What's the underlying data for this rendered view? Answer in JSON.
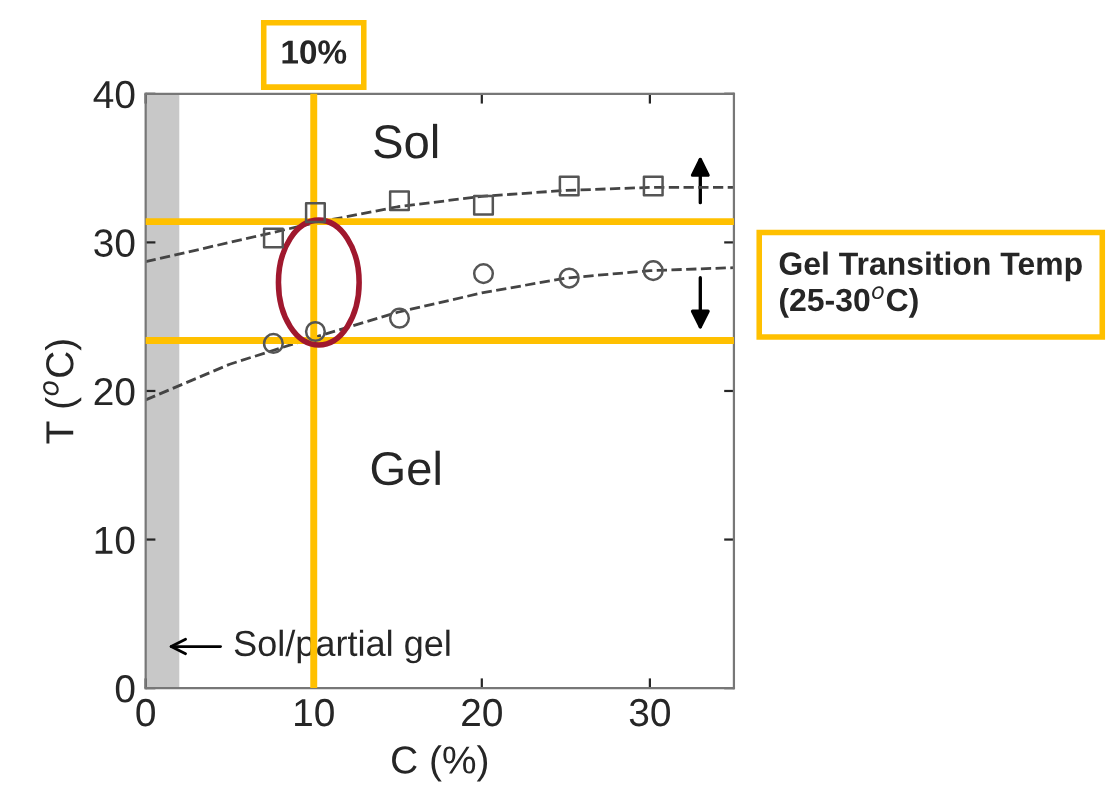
{
  "chart_data": {
    "type": "scatter",
    "xlabel": "C (%)",
    "ylabel": "T ($^{o}$C)",
    "xlim": [
      0,
      35
    ],
    "ylim": [
      0,
      40
    ],
    "xticks": [
      0,
      10,
      20,
      30
    ],
    "yticks": [
      0,
      10,
      20,
      30,
      40
    ],
    "grid": false,
    "legend": false,
    "series": [
      {
        "marker": "square",
        "color": "#555555",
        "x": [
          7.6,
          10.1,
          15.1,
          20.1,
          25.2,
          30.2
        ],
        "values": [
          30.3,
          32.0,
          32.8,
          32.5,
          33.8,
          33.8
        ]
      },
      {
        "marker": "circle",
        "color": "#555555",
        "x": [
          7.6,
          10.1,
          15.1,
          20.1,
          25.2,
          30.2
        ],
        "values": [
          23.2,
          24.0,
          24.9,
          27.9,
          27.6,
          28.1
        ]
      },
      {
        "type": "line",
        "line_style": "dashed",
        "marker": "none",
        "color": "#444444",
        "x": [
          0,
          5,
          10,
          15,
          20,
          25,
          30,
          35
        ],
        "values": [
          28.7,
          30.0,
          31.3,
          32.4,
          33.1,
          33.5,
          33.7,
          33.7
        ]
      },
      {
        "type": "line",
        "line_style": "dashed",
        "marker": "none",
        "color": "#444444",
        "x": [
          0,
          5,
          10,
          15,
          20,
          25,
          30,
          35
        ],
        "values": [
          19.4,
          21.8,
          23.6,
          25.3,
          26.6,
          27.6,
          28.1,
          28.3
        ]
      }
    ],
    "ref_lines": [
      {
        "axis": "y",
        "value": 31.4,
        "color": "#ffc000"
      },
      {
        "axis": "y",
        "value": 23.4,
        "color": "#ffc000"
      },
      {
        "axis": "x",
        "value": 10,
        "color": "#ffc000",
        "label": "10%"
      }
    ],
    "bands": [
      {
        "axis": "x",
        "from": 0,
        "to": 2,
        "color": "#c8c8c8",
        "label": "Sol/partial gel"
      }
    ],
    "annotations": [
      "Sol",
      "Gel",
      "Gel Transition Temp (25-30$^{o}$C)"
    ]
  }
}
